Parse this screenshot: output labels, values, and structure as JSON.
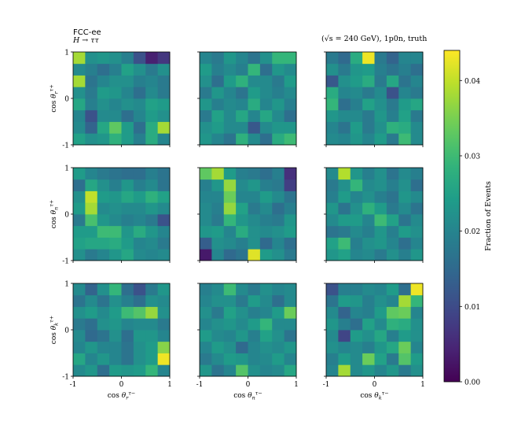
{
  "chart_data": {
    "type": "heatmap",
    "title_left_line1": "FCC-ee",
    "title_left_line2": "H → ττ",
    "title_right": "(√s = 240 GeV), 1p0n, truth",
    "bins": 8,
    "axis_range": [
      -1,
      1
    ],
    "axis_ticks": [
      "-1",
      "0",
      "1"
    ],
    "xlabels": [
      "cos θr τ−",
      "cos θn τ−",
      "cos θk τ−"
    ],
    "ylabels": [
      "cos θr τ+",
      "cos θn τ+",
      "cos θk τ+"
    ],
    "colorbar": {
      "label": "Fraction of Events",
      "range": [
        0.0,
        0.044
      ],
      "ticks": [
        "0.00",
        "0.01",
        "0.02",
        "0.03",
        "0.04"
      ],
      "tick_values": [
        0.0,
        0.01,
        0.02,
        0.03,
        0.04
      ],
      "colormap": "viridis"
    },
    "panels": [
      {
        "row": "r",
        "col": "r",
        "values": [
          [
            0.025,
            0.022,
            0.023,
            0.028,
            0.024,
            0.019,
            0.027,
            0.02
          ],
          [
            0.021,
            0.014,
            0.026,
            0.033,
            0.024,
            0.016,
            0.027,
            0.038
          ],
          [
            0.02,
            0.011,
            0.021,
            0.021,
            0.016,
            0.02,
            0.024,
            0.022
          ],
          [
            0.026,
            0.019,
            0.022,
            0.02,
            0.022,
            0.021,
            0.025,
            0.024
          ],
          [
            0.022,
            0.018,
            0.024,
            0.023,
            0.02,
            0.016,
            0.021,
            0.018
          ],
          [
            0.038,
            0.017,
            0.02,
            0.022,
            0.022,
            0.019,
            0.02,
            0.018
          ],
          [
            0.021,
            0.019,
            0.016,
            0.019,
            0.025,
            0.022,
            0.018,
            0.022
          ],
          [
            0.038,
            0.022,
            0.023,
            0.022,
            0.019,
            0.011,
            0.004,
            0.007
          ]
        ]
      },
      {
        "row": "r",
        "col": "n",
        "values": [
          [
            0.023,
            0.02,
            0.017,
            0.028,
            0.021,
            0.016,
            0.027,
            0.03
          ],
          [
            0.022,
            0.024,
            0.021,
            0.021,
            0.012,
            0.021,
            0.023,
            0.023
          ],
          [
            0.018,
            0.025,
            0.021,
            0.026,
            0.02,
            0.026,
            0.021,
            0.016
          ],
          [
            0.023,
            0.019,
            0.021,
            0.02,
            0.027,
            0.02,
            0.023,
            0.019
          ],
          [
            0.018,
            0.023,
            0.02,
            0.017,
            0.024,
            0.021,
            0.019,
            0.021
          ],
          [
            0.022,
            0.016,
            0.024,
            0.028,
            0.021,
            0.021,
            0.018,
            0.024
          ],
          [
            0.024,
            0.019,
            0.021,
            0.019,
            0.029,
            0.016,
            0.023,
            0.021
          ],
          [
            0.02,
            0.018,
            0.023,
            0.02,
            0.017,
            0.022,
            0.029,
            0.029
          ]
        ]
      },
      {
        "row": "r",
        "col": "k",
        "values": [
          [
            0.021,
            0.02,
            0.023,
            0.02,
            0.024,
            0.018,
            0.03,
            0.021
          ],
          [
            0.02,
            0.017,
            0.024,
            0.018,
            0.022,
            0.028,
            0.027,
            0.021
          ],
          [
            0.023,
            0.021,
            0.021,
            0.018,
            0.023,
            0.019,
            0.025,
            0.018
          ],
          [
            0.029,
            0.016,
            0.019,
            0.025,
            0.022,
            0.018,
            0.024,
            0.026
          ],
          [
            0.027,
            0.02,
            0.021,
            0.018,
            0.021,
            0.011,
            0.02,
            0.018
          ],
          [
            0.012,
            0.022,
            0.024,
            0.027,
            0.018,
            0.026,
            0.017,
            0.02
          ],
          [
            0.022,
            0.018,
            0.023,
            0.024,
            0.019,
            0.017,
            0.019,
            0.016
          ],
          [
            0.018,
            0.015,
            0.027,
            0.043,
            0.018,
            0.014,
            0.02,
            0.02
          ]
        ]
      },
      {
        "row": "n",
        "col": "r",
        "values": [
          [
            0.022,
            0.018,
            0.02,
            0.023,
            0.026,
            0.021,
            0.02,
            0.021
          ],
          [
            0.025,
            0.026,
            0.026,
            0.027,
            0.024,
            0.02,
            0.021,
            0.018
          ],
          [
            0.024,
            0.024,
            0.03,
            0.03,
            0.023,
            0.027,
            0.023,
            0.02
          ],
          [
            0.018,
            0.031,
            0.023,
            0.021,
            0.019,
            0.02,
            0.018,
            0.011
          ],
          [
            0.024,
            0.038,
            0.021,
            0.022,
            0.021,
            0.021,
            0.023,
            0.021
          ],
          [
            0.022,
            0.04,
            0.024,
            0.023,
            0.026,
            0.024,
            0.028,
            0.025
          ],
          [
            0.016,
            0.026,
            0.022,
            0.019,
            0.023,
            0.019,
            0.021,
            0.017
          ],
          [
            0.024,
            0.02,
            0.018,
            0.017,
            0.016,
            0.016,
            0.019,
            0.017
          ]
        ]
      },
      {
        "row": "n",
        "col": "n",
        "values": [
          [
            0.003,
            0.02,
            0.015,
            0.017,
            0.042,
            0.024,
            0.022,
            0.018
          ],
          [
            0.013,
            0.022,
            0.021,
            0.019,
            0.022,
            0.015,
            0.02,
            0.016
          ],
          [
            0.023,
            0.024,
            0.02,
            0.027,
            0.022,
            0.021,
            0.022,
            0.024
          ],
          [
            0.021,
            0.018,
            0.029,
            0.023,
            0.021,
            0.019,
            0.018,
            0.023
          ],
          [
            0.021,
            0.019,
            0.037,
            0.025,
            0.018,
            0.021,
            0.016,
            0.019
          ],
          [
            0.02,
            0.02,
            0.034,
            0.02,
            0.02,
            0.024,
            0.021,
            0.017
          ],
          [
            0.019,
            0.023,
            0.037,
            0.021,
            0.023,
            0.019,
            0.018,
            0.008
          ],
          [
            0.033,
            0.038,
            0.024,
            0.019,
            0.018,
            0.016,
            0.019,
            0.006
          ]
        ]
      },
      {
        "row": "n",
        "col": "k",
        "values": [
          [
            0.023,
            0.025,
            0.02,
            0.021,
            0.018,
            0.022,
            0.019,
            0.023
          ],
          [
            0.025,
            0.03,
            0.019,
            0.022,
            0.023,
            0.02,
            0.016,
            0.02
          ],
          [
            0.017,
            0.018,
            0.021,
            0.019,
            0.023,
            0.019,
            0.024,
            0.022
          ],
          [
            0.021,
            0.024,
            0.024,
            0.02,
            0.03,
            0.025,
            0.017,
            0.021
          ],
          [
            0.023,
            0.017,
            0.022,
            0.028,
            0.024,
            0.018,
            0.021,
            0.017
          ],
          [
            0.019,
            0.024,
            0.02,
            0.022,
            0.019,
            0.017,
            0.023,
            0.021
          ],
          [
            0.018,
            0.022,
            0.029,
            0.021,
            0.022,
            0.019,
            0.022,
            0.016
          ],
          [
            0.021,
            0.039,
            0.023,
            0.019,
            0.022,
            0.017,
            0.021,
            0.019
          ]
        ]
      },
      {
        "row": "k",
        "col": "r",
        "values": [
          [
            0.021,
            0.023,
            0.016,
            0.024,
            0.023,
            0.024,
            0.029,
            0.02
          ],
          [
            0.026,
            0.02,
            0.023,
            0.02,
            0.017,
            0.022,
            0.024,
            0.043
          ],
          [
            0.02,
            0.023,
            0.02,
            0.02,
            0.017,
            0.022,
            0.024,
            0.036
          ],
          [
            0.021,
            0.015,
            0.017,
            0.022,
            0.016,
            0.023,
            0.023,
            0.02
          ],
          [
            0.018,
            0.016,
            0.022,
            0.023,
            0.02,
            0.021,
            0.021,
            0.018
          ],
          [
            0.022,
            0.024,
            0.021,
            0.024,
            0.03,
            0.032,
            0.037,
            0.022
          ],
          [
            0.017,
            0.021,
            0.017,
            0.022,
            0.019,
            0.016,
            0.022,
            0.021
          ],
          [
            0.021,
            0.014,
            0.022,
            0.029,
            0.016,
            0.011,
            0.018,
            0.023
          ]
        ]
      },
      {
        "row": "k",
        "col": "n",
        "values": [
          [
            0.023,
            0.017,
            0.02,
            0.032,
            0.022,
            0.02,
            0.021,
            0.026
          ],
          [
            0.018,
            0.021,
            0.024,
            0.023,
            0.02,
            0.021,
            0.024,
            0.02
          ],
          [
            0.02,
            0.024,
            0.022,
            0.015,
            0.02,
            0.022,
            0.021,
            0.023
          ],
          [
            0.024,
            0.021,
            0.02,
            0.023,
            0.019,
            0.025,
            0.022,
            0.017
          ],
          [
            0.02,
            0.022,
            0.023,
            0.021,
            0.024,
            0.029,
            0.021,
            0.021
          ],
          [
            0.022,
            0.018,
            0.025,
            0.022,
            0.019,
            0.02,
            0.024,
            0.034
          ],
          [
            0.02,
            0.022,
            0.022,
            0.018,
            0.024,
            0.021,
            0.016,
            0.021
          ],
          [
            0.019,
            0.021,
            0.03,
            0.021,
            0.018,
            0.022,
            0.02,
            0.021
          ]
        ]
      },
      {
        "row": "k",
        "col": "k",
        "values": [
          [
            0.02,
            0.038,
            0.021,
            0.023,
            0.02,
            0.023,
            0.018,
            0.022
          ],
          [
            0.019,
            0.024,
            0.021,
            0.034,
            0.025,
            0.018,
            0.032,
            0.024
          ],
          [
            0.022,
            0.02,
            0.021,
            0.019,
            0.023,
            0.026,
            0.034,
            0.02
          ],
          [
            0.021,
            0.009,
            0.024,
            0.022,
            0.026,
            0.019,
            0.024,
            0.022
          ],
          [
            0.023,
            0.019,
            0.016,
            0.025,
            0.021,
            0.028,
            0.027,
            0.022
          ],
          [
            0.021,
            0.014,
            0.02,
            0.019,
            0.024,
            0.033,
            0.034,
            0.02
          ],
          [
            0.017,
            0.024,
            0.023,
            0.019,
            0.022,
            0.02,
            0.038,
            0.029
          ],
          [
            0.011,
            0.019,
            0.019,
            0.021,
            0.02,
            0.024,
            0.016,
            0.043
          ]
        ]
      }
    ]
  }
}
